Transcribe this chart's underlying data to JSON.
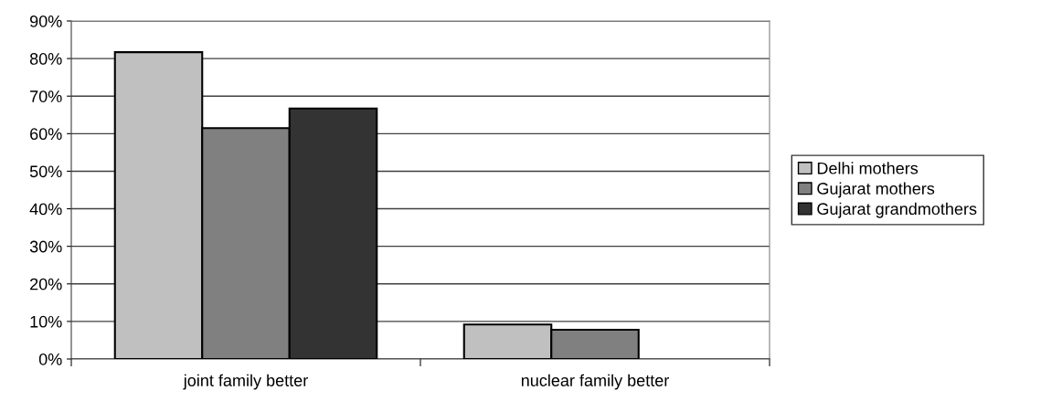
{
  "chart_data": {
    "type": "bar",
    "categories": [
      "joint family better",
      "nuclear family better"
    ],
    "series": [
      {
        "name": "Delhi mothers",
        "color": "#c0c0c0",
        "values": [
          81.7,
          9.2
        ]
      },
      {
        "name": "Gujarat mothers",
        "color": "#808080",
        "values": [
          61.5,
          7.8
        ]
      },
      {
        "name": "Gujarat grandmothers",
        "color": "#333333",
        "values": [
          66.7,
          0
        ]
      }
    ],
    "ylim": [
      0,
      90
    ],
    "yticks": [
      {
        "value": 0,
        "label": "0%"
      },
      {
        "value": 10,
        "label": "10%"
      },
      {
        "value": 20,
        "label": "20%"
      },
      {
        "value": 30,
        "label": "30%"
      },
      {
        "value": 40,
        "label": "40%"
      },
      {
        "value": 50,
        "label": "50%"
      },
      {
        "value": 60,
        "label": "60%"
      },
      {
        "value": 70,
        "label": "70%"
      },
      {
        "value": 80,
        "label": "80%"
      },
      {
        "value": 90,
        "label": "90%"
      }
    ],
    "grid": "y",
    "legend": "right"
  }
}
